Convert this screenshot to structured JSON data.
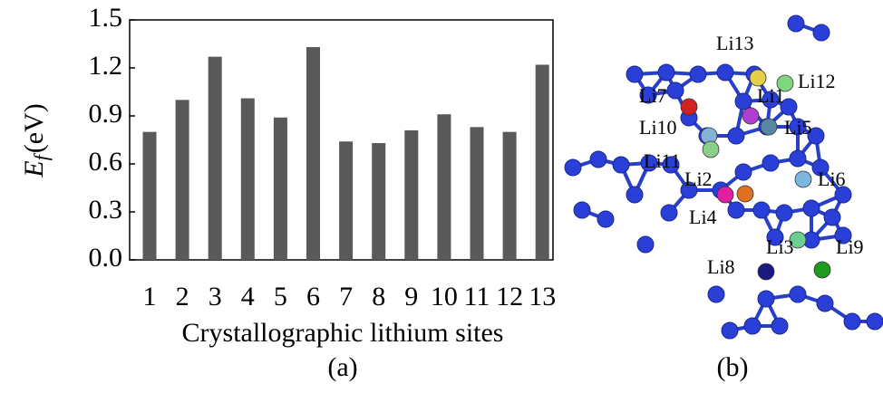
{
  "chart_data": {
    "type": "bar",
    "y_label": {
      "symbol": "E",
      "subscript": "f",
      "unit": "(eV)"
    },
    "x_label": "Crystallographic lithium sites",
    "panel_label": "(a)",
    "categories": [
      "1",
      "2",
      "3",
      "4",
      "5",
      "6",
      "7",
      "8",
      "9",
      "10",
      "11",
      "12",
      "13"
    ],
    "values": [
      0.8,
      1.0,
      1.27,
      1.01,
      0.89,
      1.33,
      0.74,
      0.73,
      0.81,
      0.91,
      0.83,
      0.8,
      1.22
    ],
    "color": "#595959",
    "ylim": [
      0,
      1.5
    ],
    "yticks": [
      {
        "value": 0,
        "label": "0.0"
      },
      0.3,
      0.6,
      0.9,
      1.2,
      1.5
    ]
  },
  "structure": {
    "panel_label": "(b)",
    "sites": [
      {
        "text": "Li13",
        "color": "#e6cf45"
      },
      {
        "text": "Li12",
        "color": "#7ed67e"
      },
      {
        "text": "Li7",
        "color": "#d42020"
      },
      {
        "text": "Li1",
        "color": "#b03ed0"
      },
      {
        "text": "Li10",
        "color": "#86b2d8"
      },
      {
        "text": "Li5",
        "color": "#5a86a6"
      },
      {
        "text": "Li11",
        "color": "#8ccf8c"
      },
      {
        "text": "Li6",
        "color": "#7ab6e0"
      },
      {
        "text": "Li2",
        "color": "#e020a0"
      },
      {
        "text": "Li4",
        "color": "#e07020"
      },
      {
        "text": "Li3",
        "color": "#6ccf90"
      },
      {
        "text": "Li9",
        "color": "#1f9a1f"
      },
      {
        "text": "Li8",
        "color": "#1a1a80"
      }
    ]
  }
}
